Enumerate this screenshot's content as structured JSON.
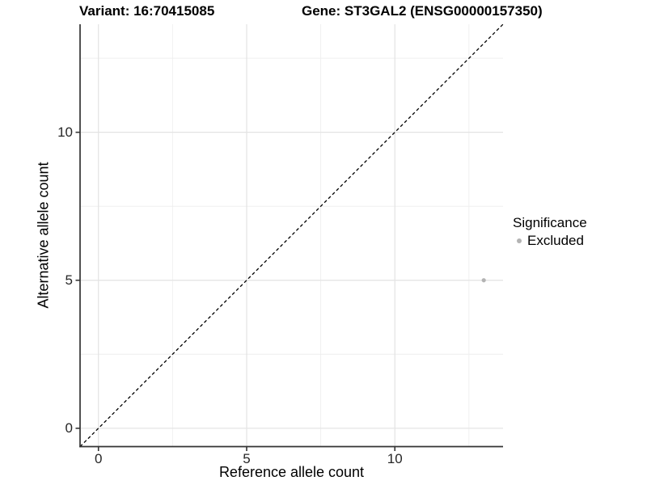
{
  "chart_data": {
    "type": "scatter",
    "title_left": "Variant: 16:70415085",
    "title_right": "Gene: ST3GAL2 (ENSG00000157350)",
    "xlabel": "Reference allele count",
    "ylabel": "Alternative allele count",
    "x_domain": [
      -0.62,
      13.65
    ],
    "y_domain": [
      -0.62,
      13.65
    ],
    "major_breaks": [
      0,
      5,
      10
    ],
    "minor_breaks": [
      2.5,
      7.5,
      12.5
    ],
    "x_tick_labels": [
      "0",
      "5",
      "10"
    ],
    "y_tick_labels": [
      "0",
      "5",
      "10"
    ],
    "points": [
      {
        "x": 13,
        "y": 5,
        "series": "Excluded"
      }
    ],
    "identity_line": {
      "equation": "y = x",
      "style": "dashed"
    },
    "legend": {
      "title": "Significance",
      "position": "right",
      "items": [
        {
          "label": "Excluded",
          "color": "#b3b3b3"
        }
      ]
    },
    "colors": {
      "point": "#b3b3b3",
      "grid_major": "#e3e3e3",
      "grid_minor": "#eeeeee",
      "axis_line": "#333333",
      "tick_mark": "#333333",
      "dashed_line": "#000000",
      "background": "#ffffff"
    },
    "grid": true
  }
}
